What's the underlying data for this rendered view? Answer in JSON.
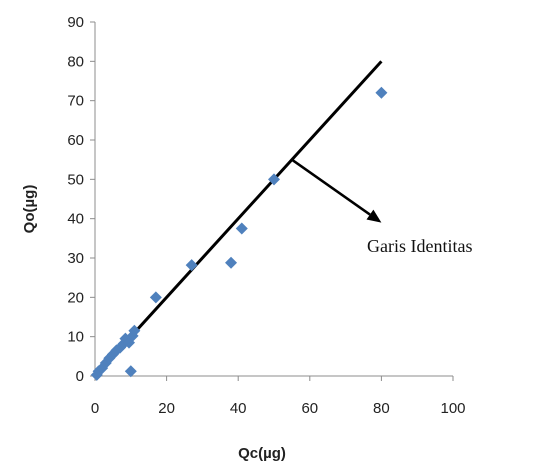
{
  "chart_data": {
    "type": "scatter",
    "title": "",
    "xlabel": "Qc(µg)",
    "ylabel": "Qo(µg)",
    "xlim": [
      0,
      100
    ],
    "ylim": [
      0,
      90
    ],
    "x_ticks": [
      "0",
      "20",
      "40",
      "60",
      "80",
      "100"
    ],
    "y_ticks": [
      "0",
      "10",
      "20",
      "30",
      "40",
      "50",
      "60",
      "70",
      "80",
      "90"
    ],
    "grid": false,
    "legend": "none",
    "series": [
      {
        "marker": "diamond",
        "color": "#4F81BD",
        "points": [
          {
            "x": 0.5,
            "y": 0.3
          },
          {
            "x": 1,
            "y": 1.2
          },
          {
            "x": 2,
            "y": 2
          },
          {
            "x": 3,
            "y": 3.3
          },
          {
            "x": 4,
            "y": 4.5
          },
          {
            "x": 5,
            "y": 5.5
          },
          {
            "x": 6,
            "y": 6.5
          },
          {
            "x": 7,
            "y": 7.2
          },
          {
            "x": 8,
            "y": 8.2
          },
          {
            "x": 8.5,
            "y": 9.5
          },
          {
            "x": 9.5,
            "y": 8.5
          },
          {
            "x": 10.5,
            "y": 10.2
          },
          {
            "x": 11,
            "y": 11.5
          },
          {
            "x": 10,
            "y": 1.2
          },
          {
            "x": 17,
            "y": 20
          },
          {
            "x": 27,
            "y": 28.2
          },
          {
            "x": 38,
            "y": 28.8
          },
          {
            "x": 41,
            "y": 37.5
          },
          {
            "x": 50,
            "y": 50
          },
          {
            "x": 80,
            "y": 72
          }
        ]
      }
    ],
    "identity_line": {
      "from": [
        0,
        0
      ],
      "to": [
        80,
        80
      ],
      "color": "#000000"
    },
    "annotation": {
      "text": "Garis Identitas",
      "arrow_from": [
        55,
        55
      ],
      "arrow_to": [
        80,
        39
      ]
    }
  }
}
